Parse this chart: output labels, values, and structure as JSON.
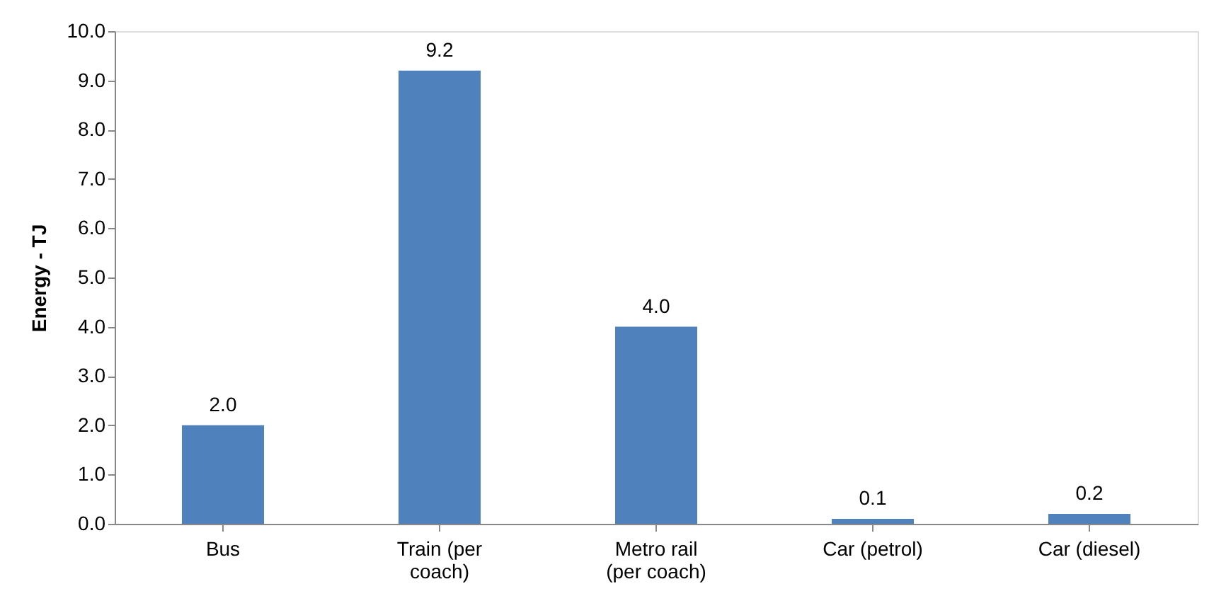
{
  "chart_data": {
    "type": "bar",
    "ylabel": "Energy - TJ",
    "categories": [
      "Bus",
      "Train (per coach)",
      "Metro rail (per coach)",
      "Car (petrol)",
      "Car (diesel)"
    ],
    "values": [
      2.0,
      9.2,
      4.0,
      0.1,
      0.2
    ],
    "color": "#4f81bd",
    "ylim": [
      0,
      10
    ],
    "yticks": [
      {
        "value": 0,
        "label": "0.0"
      },
      {
        "value": 1,
        "label": "1.0"
      },
      {
        "value": 2,
        "label": "2.0"
      },
      {
        "value": 3,
        "label": "3.0"
      },
      {
        "value": 4,
        "label": "4.0"
      },
      {
        "value": 5,
        "label": "5.0"
      },
      {
        "value": 6,
        "label": "6.0"
      },
      {
        "value": 7,
        "label": "7.0"
      },
      {
        "value": 8,
        "label": "8.0"
      },
      {
        "value": 9,
        "label": "9.0"
      },
      {
        "value": 10,
        "label": "10.0"
      }
    ],
    "value_labels": [
      "2.0",
      "9.2",
      "4.0",
      "0.1",
      "0.2"
    ],
    "grid": false
  }
}
